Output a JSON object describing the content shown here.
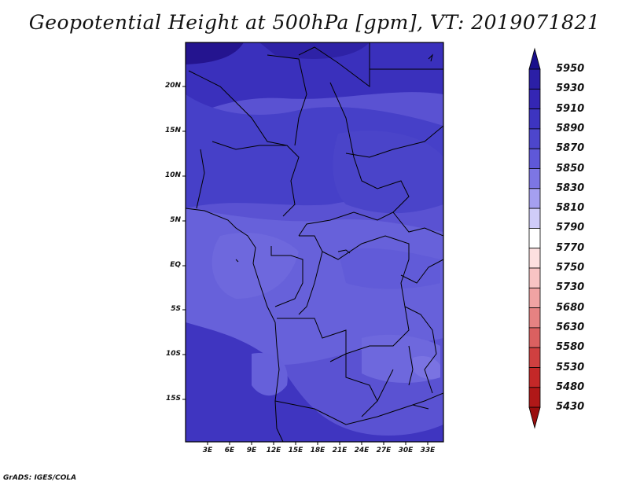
{
  "title": "Geopotential Height at 500hPa [gpm], VT: 2019071821",
  "credit": "GrADS: IGES/COLA",
  "y_ticks": [
    "20N",
    "15N",
    "10N",
    "5N",
    "EQ",
    "5S",
    "10S",
    "15S"
  ],
  "x_ticks": [
    "3E",
    "6E",
    "9E",
    "12E",
    "15E",
    "18E",
    "21E",
    "24E",
    "27E",
    "30E",
    "33E"
  ],
  "colorbar": {
    "levels": [
      "5950",
      "5930",
      "5910",
      "5890",
      "5870",
      "5850",
      "5830",
      "5810",
      "5790",
      "5770",
      "5750",
      "5730",
      "5680",
      "5630",
      "5580",
      "5530",
      "5480",
      "5430"
    ],
    "colors": [
      "#1a0f8c",
      "#2b1fa6",
      "#3426b4",
      "#3d34c0",
      "#4d46cc",
      "#5f58d8",
      "#7d76e4",
      "#a59ff0",
      "#d0ccf8",
      "#ffffff",
      "#fde0e0",
      "#f8c4c4",
      "#f0a3a3",
      "#e68282",
      "#db6060",
      "#d04040",
      "#c42828",
      "#b01818",
      "#9a0e0e"
    ]
  }
}
